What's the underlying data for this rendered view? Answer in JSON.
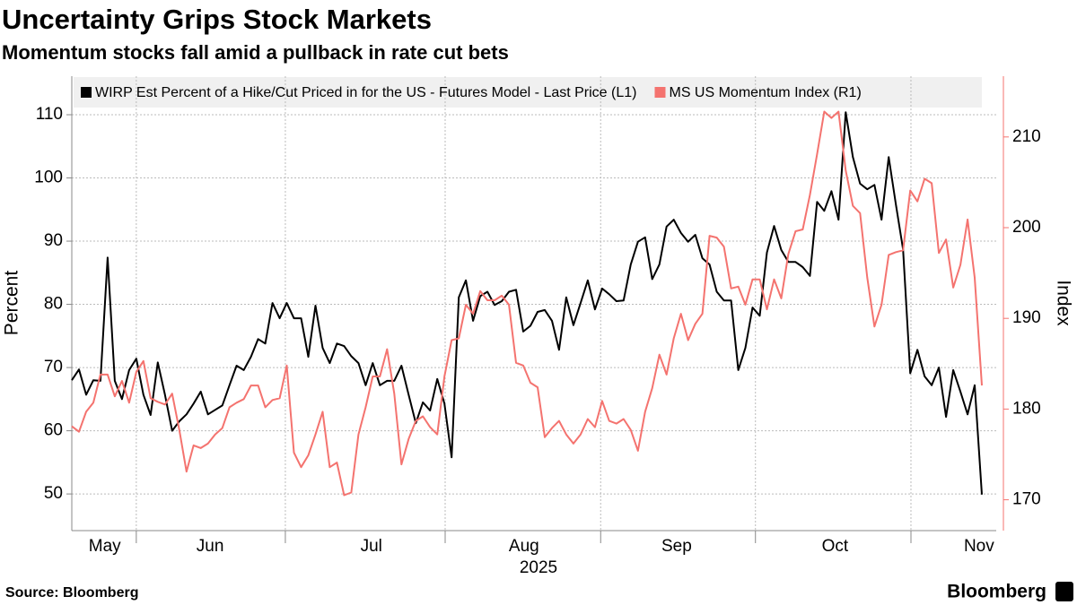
{
  "chart_data": {
    "type": "line",
    "title": "Uncertainty Grips Stock Markets",
    "subtitle": "Momentum stocks fall amid a pullback in rate cut bets",
    "ylabel": "Percent",
    "y2label": "Index",
    "xlabel": "2025",
    "source": "Source: Bloomberg",
    "brand": "Bloomberg",
    "x": [
      0,
      1,
      2,
      3,
      4,
      5,
      6,
      7,
      8,
      9,
      10,
      11,
      12,
      13,
      14,
      15,
      16,
      17,
      18,
      19,
      20,
      21,
      22,
      23,
      24,
      25,
      26,
      27,
      28,
      29,
      30,
      31,
      32,
      33,
      34,
      35,
      36,
      37,
      38,
      39,
      40,
      41,
      42,
      43,
      44,
      45,
      46,
      47,
      48,
      49,
      50,
      51,
      52,
      53,
      54,
      55,
      56,
      57,
      58,
      59,
      60,
      61,
      62,
      63,
      64,
      65,
      66,
      67,
      68,
      69,
      70,
      71,
      72,
      73,
      74,
      75,
      76,
      77,
      78,
      79,
      80,
      81,
      82,
      83,
      84,
      85,
      86,
      87,
      88,
      89,
      90,
      91,
      92,
      93,
      94,
      95,
      96,
      97,
      98,
      99,
      100,
      101,
      102,
      103,
      104,
      105,
      106,
      107,
      108,
      109,
      110,
      111,
      112,
      113,
      114,
      115,
      116,
      117,
      118,
      119,
      120,
      121,
      122,
      123,
      124,
      125,
      126,
      127
    ],
    "xlim": [
      0,
      129
    ],
    "xticks": [
      {
        "value": 4.6,
        "label": "May"
      },
      {
        "value": 19.3,
        "label": "Jun"
      },
      {
        "value": 41.8,
        "label": "Jul"
      },
      {
        "value": 63.1,
        "label": "Aug"
      },
      {
        "value": 84.4,
        "label": "Sep"
      },
      {
        "value": 106.5,
        "label": "Oct"
      },
      {
        "value": 126.6,
        "label": "Nov"
      }
    ],
    "xgridticks": [
      9,
      29.8,
      52.1,
      73.8,
      95.4,
      117.1
    ],
    "ylim": [
      44.2,
      116.1
    ],
    "yticks": [
      50,
      60,
      70,
      80,
      90,
      100,
      110
    ],
    "y2lim": [
      166.6,
      216.7
    ],
    "y2ticks": [
      170,
      180,
      190,
      200,
      210
    ],
    "grid": true,
    "legend": "top",
    "series": [
      {
        "name": "WIRP Est Percent of a Hike/Cut Priced in for the US - Futures Model - Last Price (L1)",
        "color": "#000000",
        "axis": "y",
        "values": [
          68,
          69.7,
          65.7,
          68,
          67.9,
          87.4,
          67.9,
          65,
          69.6,
          71.4,
          65.7,
          62.5,
          70.8,
          65.7,
          60,
          61.5,
          62.6,
          64.3,
          66.2,
          62.6,
          63.3,
          64,
          67.2,
          70.3,
          69.6,
          71.7,
          74.5,
          73.8,
          80.2,
          77.8,
          80.2,
          77.8,
          77.8,
          71.7,
          79.8,
          73.1,
          70.7,
          73.8,
          73.4,
          71.8,
          70.7,
          67.2,
          70.7,
          67.2,
          67.9,
          67.9,
          70.3,
          65.7,
          61.2,
          64.5,
          63.2,
          68.2,
          64.3,
          55.8,
          81.1,
          83.8,
          77.4,
          81.3,
          82,
          79.9,
          80.5,
          82,
          82.3,
          75.7,
          76.6,
          78.8,
          79.1,
          77.4,
          72.8,
          81.1,
          76.7,
          80.2,
          83.8,
          79.2,
          82.5,
          81.6,
          80.5,
          80.6,
          86.3,
          89.9,
          90.6,
          84,
          86.3,
          92.3,
          93.4,
          91.3,
          89.9,
          91,
          87.3,
          86.3,
          82,
          80.6,
          80.6,
          69.6,
          73.1,
          79.5,
          78.2,
          88.2,
          92.4,
          88.6,
          86.7,
          86.7,
          85.9,
          84.5,
          96.2,
          94.8,
          97.9,
          93.4,
          110.4,
          103.3,
          99.1,
          98.2,
          98.9,
          93.4,
          103.3,
          95.8,
          88.7,
          69.1,
          72.8,
          68.6,
          67.2,
          70,
          62.2,
          69.6,
          66.2,
          62.6,
          67.2,
          49.9
        ]
      },
      {
        "name": "MS US Momentum Index (R1)",
        "color": "#f4736f",
        "axis": "y2",
        "values": [
          178.1,
          177.5,
          179.7,
          180.7,
          183.8,
          183.8,
          181.4,
          183.1,
          180.7,
          184.1,
          185.3,
          181.2,
          180.8,
          180.5,
          181.7,
          177.7,
          173.1,
          176,
          175.7,
          176.2,
          177.2,
          177.9,
          180.2,
          180.7,
          181.1,
          182.6,
          182.6,
          180.2,
          181,
          181.2,
          184.8,
          175.2,
          173.6,
          174.9,
          177.2,
          179.7,
          173.6,
          174.1,
          170.5,
          170.8,
          177.2,
          180.2,
          183.6,
          183.6,
          186.6,
          181.7,
          173.9,
          176.7,
          178.7,
          179.2,
          178,
          177.2,
          183.6,
          187.6,
          187.8,
          191.5,
          190.5,
          193,
          192,
          192,
          192.5,
          191.5,
          185.1,
          184.8,
          182.9,
          182.4,
          176.9,
          177.9,
          178.7,
          177.2,
          176.2,
          177.2,
          178.9,
          178,
          180.9,
          178.7,
          178.4,
          178.9,
          177.7,
          175.4,
          179.7,
          182.3,
          186,
          183.8,
          187.8,
          190.5,
          187.6,
          189.4,
          190.5,
          199.1,
          198.9,
          197.9,
          193.3,
          193.5,
          191.5,
          194.3,
          194.3,
          191,
          194.3,
          192.2,
          197.1,
          199.6,
          199.8,
          203.6,
          208.1,
          212.8,
          212.1,
          212.8,
          206.3,
          202.4,
          201.6,
          194.5,
          189.1,
          191.5,
          197,
          197.3,
          197.5,
          204.1,
          202.9,
          205.4,
          204.9,
          197.2,
          198.7,
          193.4,
          195.9,
          200.9,
          194.5,
          182.6
        ]
      }
    ]
  }
}
